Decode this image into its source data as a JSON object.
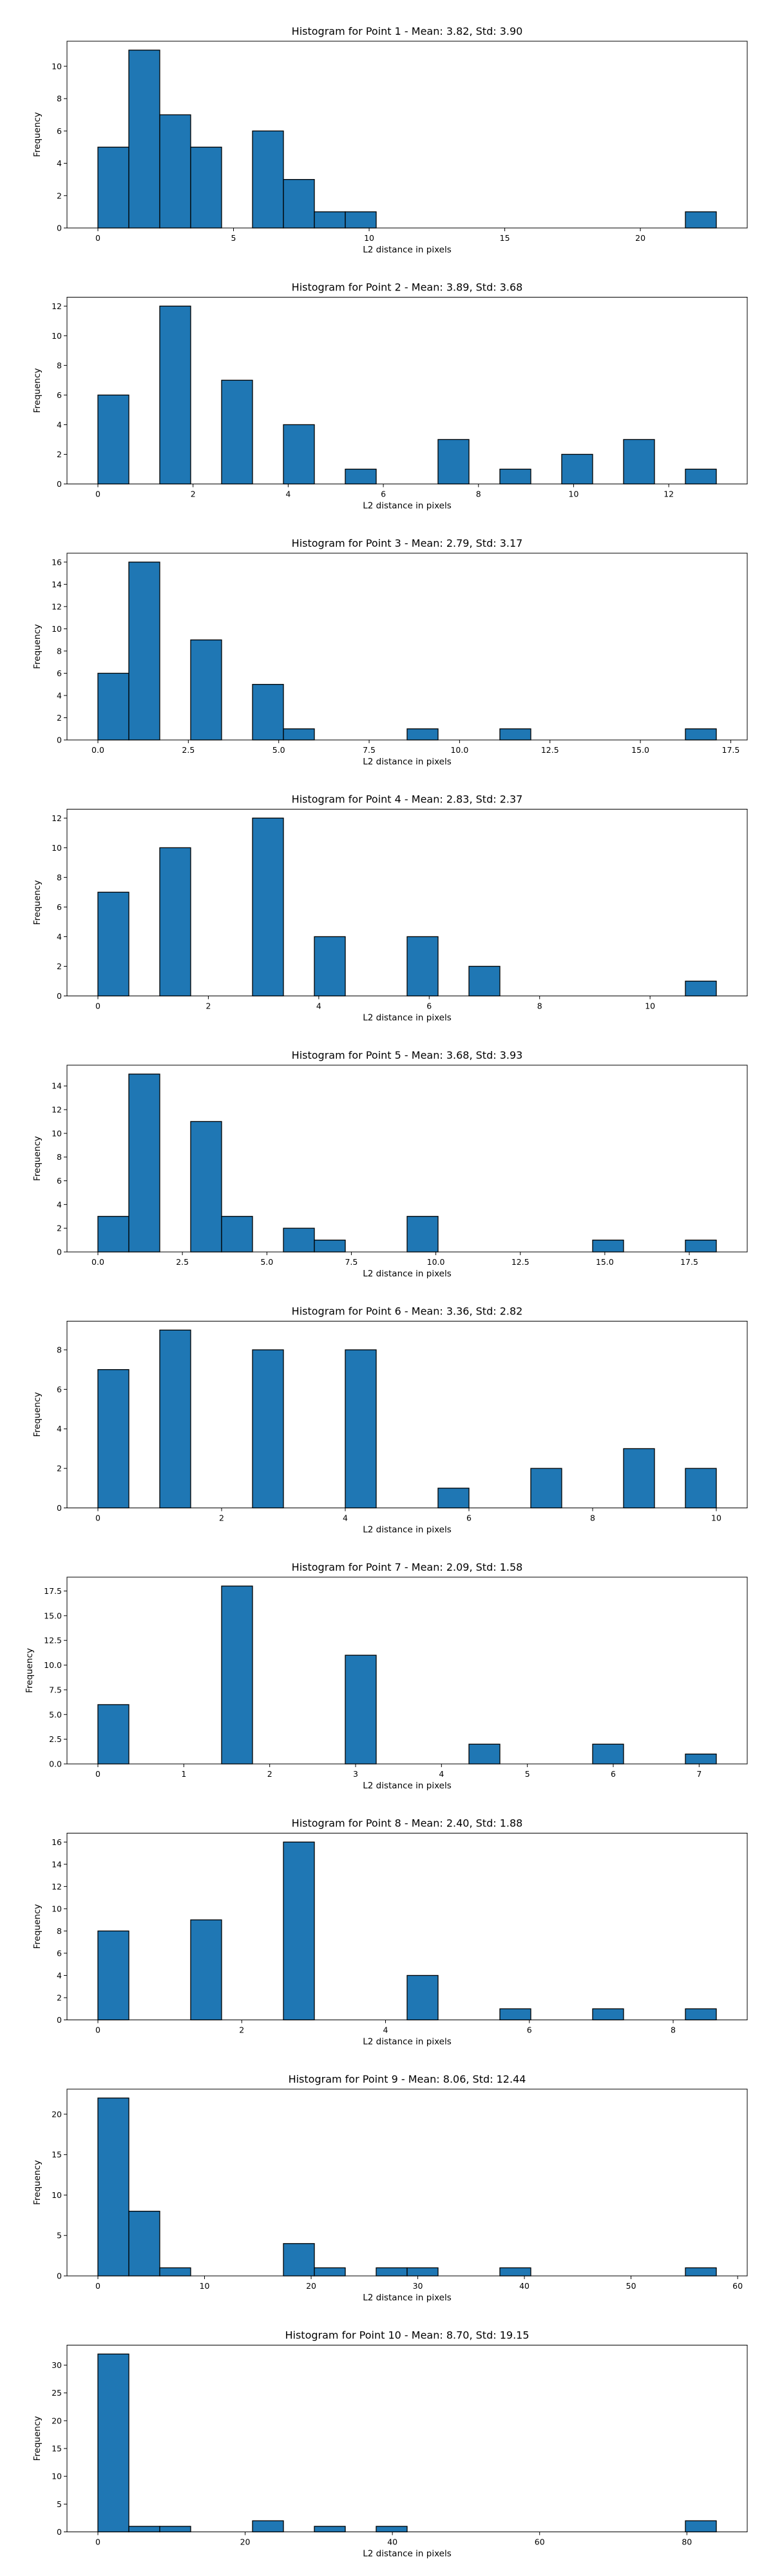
{
  "chart_data": [
    {
      "type": "bar",
      "title": "Histogram for Point 1 - Mean: 3.82, Std: 3.90",
      "xlabel": "L2 distance in pixels",
      "ylabel": "Frequency",
      "bins": [
        [
          0.0,
          1.14,
          5
        ],
        [
          1.14,
          2.28,
          11
        ],
        [
          2.28,
          3.42,
          7
        ],
        [
          3.42,
          4.56,
          5
        ],
        [
          5.7,
          6.84,
          6
        ],
        [
          6.84,
          7.98,
          3
        ],
        [
          7.98,
          9.12,
          1
        ],
        [
          9.12,
          10.26,
          1
        ],
        [
          21.66,
          22.8,
          1
        ]
      ],
      "xlim": [
        -1.14,
        23.94
      ],
      "ylim": [
        0,
        11.55
      ],
      "xticks": [
        0,
        5,
        10,
        15,
        20
      ],
      "xtick_labels": [
        "0",
        "5",
        "10",
        "15",
        "20"
      ],
      "yticks": [
        0,
        2,
        4,
        6,
        8,
        10
      ],
      "ytick_labels": [
        "0",
        "2",
        "4",
        "6",
        "8",
        "10"
      ]
    },
    {
      "type": "bar",
      "title": "Histogram for Point 2 - Mean: 3.89, Std: 3.68",
      "xlabel": "L2 distance in pixels",
      "ylabel": "Frequency",
      "bins": [
        [
          0.0,
          0.65,
          6
        ],
        [
          1.3,
          1.95,
          12
        ],
        [
          2.6,
          3.25,
          7
        ],
        [
          3.9,
          4.55,
          4
        ],
        [
          5.2,
          5.85,
          1
        ],
        [
          7.15,
          7.8,
          3
        ],
        [
          8.45,
          9.1,
          1
        ],
        [
          9.75,
          10.4,
          2
        ],
        [
          11.05,
          11.7,
          3
        ],
        [
          12.35,
          13.0,
          1
        ]
      ],
      "xlim": [
        -0.65,
        13.65
      ],
      "ylim": [
        0,
        12.6
      ],
      "xticks": [
        0,
        2,
        4,
        6,
        8,
        10,
        12
      ],
      "xtick_labels": [
        "0",
        "2",
        "4",
        "6",
        "8",
        "10",
        "12"
      ],
      "yticks": [
        0,
        2,
        4,
        6,
        8,
        10,
        12
      ],
      "ytick_labels": [
        "0",
        "2",
        "4",
        "6",
        "8",
        "10",
        "12"
      ]
    },
    {
      "type": "bar",
      "title": "Histogram for Point 3 - Mean: 2.79, Std: 3.17",
      "xlabel": "L2 distance in pixels",
      "ylabel": "Frequency",
      "bins": [
        [
          0.0,
          0.855,
          6
        ],
        [
          0.855,
          1.71,
          16
        ],
        [
          2.565,
          3.42,
          9
        ],
        [
          4.275,
          5.13,
          5
        ],
        [
          5.13,
          5.985,
          1
        ],
        [
          8.55,
          9.405,
          1
        ],
        [
          11.115,
          11.97,
          1
        ],
        [
          16.245,
          17.1,
          1
        ]
      ],
      "xlim": [
        -0.855,
        17.955
      ],
      "ylim": [
        0,
        16.8
      ],
      "xticks": [
        0,
        2.5,
        5,
        7.5,
        10,
        12.5,
        15,
        17.5
      ],
      "xtick_labels": [
        "0.0",
        "2.5",
        "5.0",
        "7.5",
        "10.0",
        "12.5",
        "15.0",
        "17.5"
      ],
      "yticks": [
        0,
        2,
        4,
        6,
        8,
        10,
        12,
        14,
        16
      ],
      "ytick_labels": [
        "0",
        "2",
        "4",
        "6",
        "8",
        "10",
        "12",
        "14",
        "16"
      ]
    },
    {
      "type": "bar",
      "title": "Histogram for Point 4 - Mean: 2.83, Std: 2.37",
      "xlabel": "L2 distance in pixels",
      "ylabel": "Frequency",
      "bins": [
        [
          0.0,
          0.56,
          7
        ],
        [
          1.12,
          1.68,
          10
        ],
        [
          2.8,
          3.36,
          12
        ],
        [
          3.92,
          4.48,
          4
        ],
        [
          5.6,
          6.16,
          4
        ],
        [
          6.72,
          7.28,
          2
        ],
        [
          10.64,
          11.2,
          1
        ]
      ],
      "xlim": [
        -0.56,
        11.76
      ],
      "ylim": [
        0,
        12.6
      ],
      "xticks": [
        0,
        2,
        4,
        6,
        8,
        10
      ],
      "xtick_labels": [
        "0",
        "2",
        "4",
        "6",
        "8",
        "10"
      ],
      "yticks": [
        0,
        2,
        4,
        6,
        8,
        10,
        12
      ],
      "ytick_labels": [
        "0",
        "2",
        "4",
        "6",
        "8",
        "10",
        "12"
      ]
    },
    {
      "type": "bar",
      "title": "Histogram for Point 5 - Mean: 3.68, Std: 3.93",
      "xlabel": "L2 distance in pixels",
      "ylabel": "Frequency",
      "bins": [
        [
          0.0,
          0.915,
          3
        ],
        [
          0.915,
          1.83,
          15
        ],
        [
          2.745,
          3.66,
          11
        ],
        [
          3.66,
          4.575,
          3
        ],
        [
          5.49,
          6.405,
          2
        ],
        [
          6.405,
          7.32,
          1
        ],
        [
          9.15,
          10.065,
          3
        ],
        [
          14.64,
          15.555,
          1
        ],
        [
          17.385,
          18.3,
          1
        ]
      ],
      "xlim": [
        -0.915,
        19.215
      ],
      "ylim": [
        0,
        15.75
      ],
      "xticks": [
        0,
        2.5,
        5,
        7.5,
        10,
        12.5,
        15,
        17.5
      ],
      "xtick_labels": [
        "0.0",
        "2.5",
        "5.0",
        "7.5",
        "10.0",
        "12.5",
        "15.0",
        "17.5"
      ],
      "yticks": [
        0,
        2,
        4,
        6,
        8,
        10,
        12,
        14
      ],
      "ytick_labels": [
        "0",
        "2",
        "4",
        "6",
        "8",
        "10",
        "12",
        "14"
      ]
    },
    {
      "type": "bar",
      "title": "Histogram for Point 6 - Mean: 3.36, Std: 2.82",
      "xlabel": "L2 distance in pixels",
      "ylabel": "Frequency",
      "bins": [
        [
          0.0,
          0.5,
          7
        ],
        [
          1.0,
          1.5,
          9
        ],
        [
          2.5,
          3.0,
          8
        ],
        [
          4.0,
          4.5,
          8
        ],
        [
          5.5,
          6.0,
          1
        ],
        [
          7.0,
          7.5,
          2
        ],
        [
          8.5,
          9.0,
          3
        ],
        [
          9.5,
          10.0,
          2
        ]
      ],
      "xlim": [
        -0.5,
        10.5
      ],
      "ylim": [
        0,
        9.45
      ],
      "xticks": [
        0,
        2,
        4,
        6,
        8,
        10
      ],
      "xtick_labels": [
        "0",
        "2",
        "4",
        "6",
        "8",
        "10"
      ],
      "yticks": [
        0,
        2,
        4,
        6,
        8
      ],
      "ytick_labels": [
        "0",
        "2",
        "4",
        "6",
        "8"
      ]
    },
    {
      "type": "bar",
      "title": "Histogram for Point 7 - Mean: 2.09, Std: 1.58",
      "xlabel": "L2 distance in pixels",
      "ylabel": "Frequency",
      "bins": [
        [
          0.0,
          0.36,
          6
        ],
        [
          1.44,
          1.8,
          18
        ],
        [
          2.88,
          3.24,
          11
        ],
        [
          4.32,
          4.68,
          2
        ],
        [
          5.76,
          6.12,
          2
        ],
        [
          6.84,
          7.2,
          1
        ]
      ],
      "xlim": [
        -0.36,
        7.56
      ],
      "ylim": [
        0,
        18.9
      ],
      "xticks": [
        0,
        1,
        2,
        3,
        4,
        5,
        6,
        7
      ],
      "xtick_labels": [
        "0",
        "1",
        "2",
        "3",
        "4",
        "5",
        "6",
        "7"
      ],
      "yticks": [
        0,
        2.5,
        5,
        7.5,
        10,
        12.5,
        15,
        17.5
      ],
      "ytick_labels": [
        "0.0",
        "2.5",
        "5.0",
        "7.5",
        "10.0",
        "12.5",
        "15.0",
        "17.5"
      ]
    },
    {
      "type": "bar",
      "title": "Histogram for Point 8 - Mean: 2.40, Std: 1.88",
      "xlabel": "L2 distance in pixels",
      "ylabel": "Frequency",
      "bins": [
        [
          0.0,
          0.43,
          8
        ],
        [
          1.29,
          1.72,
          9
        ],
        [
          2.58,
          3.01,
          16
        ],
        [
          4.3,
          4.73,
          4
        ],
        [
          5.59,
          6.02,
          1
        ],
        [
          6.88,
          7.31,
          1
        ],
        [
          8.17,
          8.6,
          1
        ]
      ],
      "xlim": [
        -0.43,
        9.03
      ],
      "ylim": [
        0,
        16.8
      ],
      "xticks": [
        0,
        2,
        4,
        6,
        8
      ],
      "xtick_labels": [
        "0",
        "2",
        "4",
        "6",
        "8"
      ],
      "yticks": [
        0,
        2,
        4,
        6,
        8,
        10,
        12,
        14,
        16
      ],
      "ytick_labels": [
        "0",
        "2",
        "4",
        "6",
        "8",
        "10",
        "12",
        "14",
        "16"
      ]
    },
    {
      "type": "bar",
      "title": "Histogram for Point 9 - Mean: 8.06, Std: 12.44",
      "xlabel": "L2 distance in pixels",
      "ylabel": "Frequency",
      "bins": [
        [
          0.0,
          2.9,
          22
        ],
        [
          2.9,
          5.8,
          8
        ],
        [
          5.8,
          8.7,
          1
        ],
        [
          17.4,
          20.3,
          4
        ],
        [
          20.3,
          23.2,
          1
        ],
        [
          26.1,
          29.0,
          1
        ],
        [
          29.0,
          31.9,
          1
        ],
        [
          37.7,
          40.6,
          1
        ],
        [
          55.1,
          58.0,
          1
        ]
      ],
      "xlim": [
        -2.9,
        60.9
      ],
      "ylim": [
        0,
        23.1
      ],
      "xticks": [
        0,
        10,
        20,
        30,
        40,
        50,
        60
      ],
      "xtick_labels": [
        "0",
        "10",
        "20",
        "30",
        "40",
        "50",
        "60"
      ],
      "yticks": [
        0,
        5,
        10,
        15,
        20
      ],
      "ytick_labels": [
        "0",
        "5",
        "10",
        "15",
        "20"
      ]
    },
    {
      "type": "bar",
      "title": "Histogram for Point 10 - Mean: 8.70, Std: 19.15",
      "xlabel": "L2 distance in pixels",
      "ylabel": "Frequency",
      "bins": [
        [
          0.0,
          4.2,
          32
        ],
        [
          4.2,
          8.4,
          1
        ],
        [
          8.4,
          12.6,
          1
        ],
        [
          21.0,
          25.2,
          2
        ],
        [
          29.4,
          33.6,
          1
        ],
        [
          37.8,
          42.0,
          1
        ],
        [
          79.8,
          84.0,
          2
        ]
      ],
      "xlim": [
        -4.2,
        88.2
      ],
      "ylim": [
        0,
        33.6
      ],
      "xticks": [
        0,
        20,
        40,
        60,
        80
      ],
      "xtick_labels": [
        "0",
        "20",
        "40",
        "60",
        "80"
      ],
      "yticks": [
        0,
        5,
        10,
        15,
        20,
        25,
        30
      ],
      "ytick_labels": [
        "0",
        "5",
        "10",
        "15",
        "20",
        "25",
        "30"
      ]
    }
  ]
}
